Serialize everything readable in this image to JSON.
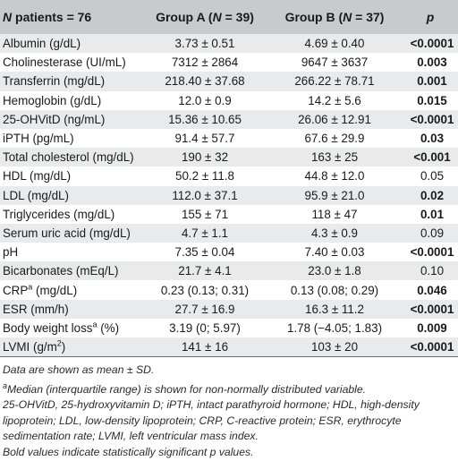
{
  "header": {
    "col0_n": "N",
    "col0_rest": " patients = 76",
    "col1_pre": "Group A (",
    "col1_n": "N",
    "col1_post": " = 39)",
    "col2_pre": "Group B (",
    "col2_n": "N",
    "col2_post": " = 37)",
    "col3": "p"
  },
  "rows": [
    {
      "label": "Albumin (g/dL)",
      "sup": "",
      "label_tail": "",
      "a": "3.73 ± 0.51",
      "b": "4.69 ± 0.40",
      "p": "<0.0001",
      "sig": true
    },
    {
      "label": "Cholinesterase (UI/mL)",
      "sup": "",
      "label_tail": "",
      "a": "7312 ± 2864",
      "b": "9647 ± 3637",
      "p": "0.003",
      "sig": true
    },
    {
      "label": "Transferrin (mg/dL)",
      "sup": "",
      "label_tail": "",
      "a": "218.40 ± 37.68",
      "b": "266.22 ± 78.71",
      "p": "0.001",
      "sig": true
    },
    {
      "label": "Hemoglobin (g/dL)",
      "sup": "",
      "label_tail": "",
      "a": "12.0 ± 0.9",
      "b": "14.2 ± 5.6",
      "p": "0.015",
      "sig": true
    },
    {
      "label": "25-OHVitD (ng/mL)",
      "sup": "",
      "label_tail": "",
      "a": "15.36 ± 10.65",
      "b": "26.06 ± 12.91",
      "p": "<0.0001",
      "sig": true
    },
    {
      "label": "iPTH (pg/mL)",
      "sup": "",
      "label_tail": "",
      "a": "91.4 ± 57.7",
      "b": "67.6 ± 29.9",
      "p": "0.03",
      "sig": true
    },
    {
      "label": "Total cholesterol (mg/dL)",
      "sup": "",
      "label_tail": "",
      "a": "190 ± 32",
      "b": "163 ± 25",
      "p": "<0.001",
      "sig": true
    },
    {
      "label": "HDL (mg/dL)",
      "sup": "",
      "label_tail": "",
      "a": "50.2 ± 11.8",
      "b": "44.8 ± 12.0",
      "p": "0.05",
      "sig": false
    },
    {
      "label": "LDL (mg/dL)",
      "sup": "",
      "label_tail": "",
      "a": "112.0 ± 37.1",
      "b": "95.9 ± 21.0",
      "p": "0.02",
      "sig": true
    },
    {
      "label": "Triglycerides (mg/dL)",
      "sup": "",
      "label_tail": "",
      "a": "155 ± 71",
      "b": "118 ± 47",
      "p": "0.01",
      "sig": true
    },
    {
      "label": "Serum uric acid (mg/dL)",
      "sup": "",
      "label_tail": "",
      "a": "4.7 ± 1.1",
      "b": "4.3 ± 0.9",
      "p": "0.09",
      "sig": false
    },
    {
      "label": "pH",
      "sup": "",
      "label_tail": "",
      "a": "7.35 ± 0.04",
      "b": "7.40 ± 0.03",
      "p": "<0.0001",
      "sig": true
    },
    {
      "label": "Bicarbonates (mEq/L)",
      "sup": "",
      "label_tail": "",
      "a": "21.7 ± 4.1",
      "b": "23.0 ± 1.8",
      "p": "0.10",
      "sig": false
    },
    {
      "label": "CRP",
      "sup": "a",
      "label_tail": " (mg/dL)",
      "a": "0.23 (0.13; 0.31)",
      "b": "0.13 (0.08; 0.29)",
      "p": "0.046",
      "sig": true
    },
    {
      "label": "ESR (mm/h)",
      "sup": "",
      "label_tail": "",
      "a": "27.7 ± 16.9",
      "b": "16.3 ± 11.2",
      "p": "<0.0001",
      "sig": true
    },
    {
      "label": "Body weight loss",
      "sup": "a",
      "label_tail": " (%)",
      "a": "3.19 (0; 5.97)",
      "b": "1.78 (−4.05; 1.83)",
      "p": "0.009",
      "sig": true
    },
    {
      "label": "LVMI (g/m",
      "sup": "2",
      "label_tail": ")",
      "a": "141 ± 16",
      "b": "103 ± 20",
      "p": "<0.0001",
      "sig": true
    }
  ],
  "notes": {
    "line1": "Data are shown as mean ± SD.",
    "line2_sup": "a",
    "line2": "Median (interquartile range) is shown for non-normally distributed variable.",
    "line3": "25-OHVitD, 25-hydroxyvitamin D; iPTH, intact parathyroid hormone; HDL, high-density lipoprotein; LDL, low-density lipoprotein; CRP, C-reactive protein; ESR, erythrocyte sedimentation rate; LVMI, left ventricular mass index.",
    "line4": "Bold values indicate statistically significant p values."
  }
}
